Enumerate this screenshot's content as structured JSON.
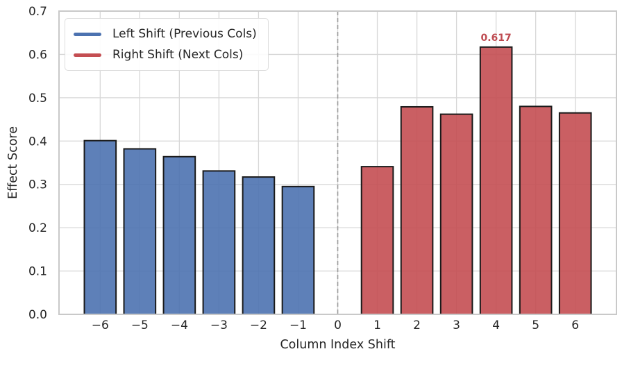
{
  "chart_data": {
    "type": "bar",
    "title": "",
    "xlabel": "Column Index Shift",
    "ylabel": "Effect Score",
    "xlim": [
      -7.04,
      7.04
    ],
    "ylim": [
      0,
      0.7
    ],
    "grid": true,
    "legend_position": "upper left",
    "bar_width": 0.8,
    "xticks": {
      "values": [
        -6,
        -5,
        -4,
        -3,
        -2,
        -1,
        0,
        1,
        2,
        3,
        4,
        5,
        6
      ],
      "labels": [
        "−6",
        "−5",
        "−4",
        "−3",
        "−2",
        "−1",
        "0",
        "1",
        "2",
        "3",
        "4",
        "5",
        "6"
      ]
    },
    "yticks": {
      "values": [
        0,
        0.1,
        0.2,
        0.3,
        0.4,
        0.5,
        0.6,
        0.7
      ],
      "labels": [
        "0.0",
        "0.1",
        "0.2",
        "0.3",
        "0.4",
        "0.5",
        "0.6",
        "0.7"
      ]
    },
    "series": [
      {
        "name": "Left Shift (Previous Cols)",
        "color": "#4c72b0",
        "x": [
          -6,
          -5,
          -4,
          -3,
          -2,
          -1
        ],
        "values": [
          0.401,
          0.382,
          0.364,
          0.331,
          0.317,
          0.295
        ]
      },
      {
        "name": "Right Shift (Next Cols)",
        "color": "#c44e52",
        "x": [
          1,
          2,
          3,
          4,
          5,
          6
        ],
        "values": [
          0.341,
          0.479,
          0.462,
          0.617,
          0.48,
          0.465
        ]
      }
    ],
    "annotation": {
      "text": "0.617",
      "x": 4,
      "y": 0.617,
      "color": "#be4a50"
    },
    "reference_line": {
      "x": 0,
      "style": "dashed",
      "color": "#9a9a9a"
    },
    "colors": {
      "bar_edge": "#1a1a1a",
      "grid": "#d7d7d7",
      "spine": "#c9c9c9",
      "text": "#262626"
    }
  }
}
